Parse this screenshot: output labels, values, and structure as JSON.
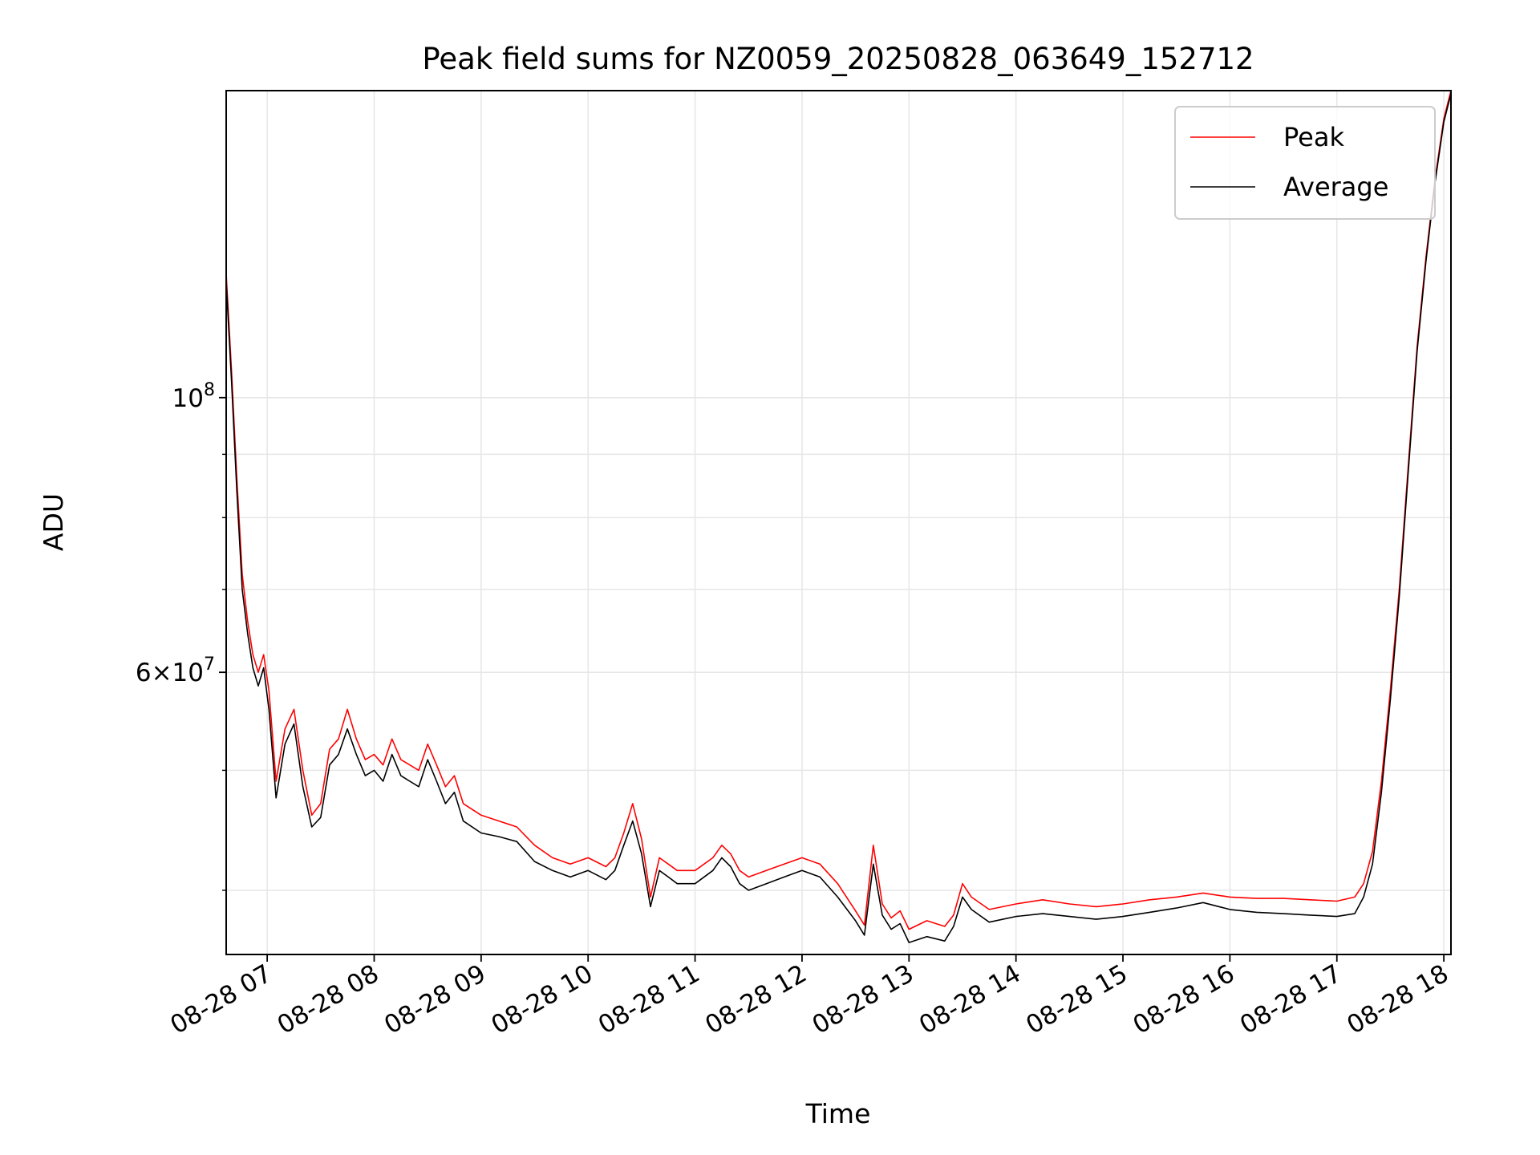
{
  "chart_data": {
    "type": "line",
    "title": "Peak field sums for NZ0059_20250828_063649_152712",
    "xlabel": "Time",
    "ylabel": "ADU",
    "y_scale": "log",
    "ylim": [
      35500000,
      177000000
    ],
    "xlim": [
      "2025-08-28 06:37",
      "2025-08-28 18:04"
    ],
    "x_ticks": [
      {
        "time": "2025-08-28 07:00",
        "label": "08-28 07"
      },
      {
        "time": "2025-08-28 08:00",
        "label": "08-28 08"
      },
      {
        "time": "2025-08-28 09:00",
        "label": "08-28 09"
      },
      {
        "time": "2025-08-28 10:00",
        "label": "08-28 10"
      },
      {
        "time": "2025-08-28 11:00",
        "label": "08-28 11"
      },
      {
        "time": "2025-08-28 12:00",
        "label": "08-28 12"
      },
      {
        "time": "2025-08-28 13:00",
        "label": "08-28 13"
      },
      {
        "time": "2025-08-28 14:00",
        "label": "08-28 14"
      },
      {
        "time": "2025-08-28 15:00",
        "label": "08-28 15"
      },
      {
        "time": "2025-08-28 16:00",
        "label": "08-28 16"
      },
      {
        "time": "2025-08-28 17:00",
        "label": "08-28 17"
      },
      {
        "time": "2025-08-28 18:00",
        "label": "08-28 18"
      }
    ],
    "y_major_ticks": [
      {
        "value": 100000000,
        "mantissa": "",
        "base": "10",
        "exp": "8"
      },
      {
        "value": 60000000,
        "mantissa": "6",
        "base": "10",
        "exp": "7"
      }
    ],
    "y_minor_ticks": [
      40000000,
      50000000,
      70000000,
      80000000,
      90000000
    ],
    "grid": true,
    "legend_position": "top-right",
    "series": [
      {
        "name": "Peak",
        "color": "#ff0000",
        "points": [
          [
            "2025-08-28 06:37",
            126000000
          ],
          [
            "2025-08-28 06:40",
            105000000
          ],
          [
            "2025-08-28 06:43",
            86000000
          ],
          [
            "2025-08-28 06:46",
            72000000
          ],
          [
            "2025-08-28 06:49",
            66000000
          ],
          [
            "2025-08-28 06:52",
            62000000
          ],
          [
            "2025-08-28 06:55",
            60000000
          ],
          [
            "2025-08-28 06:58",
            62000000
          ],
          [
            "2025-08-28 07:01",
            58000000
          ],
          [
            "2025-08-28 07:05",
            49000000
          ],
          [
            "2025-08-28 07:10",
            54000000
          ],
          [
            "2025-08-28 07:15",
            56000000
          ],
          [
            "2025-08-28 07:20",
            50000000
          ],
          [
            "2025-08-28 07:25",
            46000000
          ],
          [
            "2025-08-28 07:30",
            47000000
          ],
          [
            "2025-08-28 07:35",
            52000000
          ],
          [
            "2025-08-28 07:40",
            53000000
          ],
          [
            "2025-08-28 07:45",
            56000000
          ],
          [
            "2025-08-28 07:50",
            53000000
          ],
          [
            "2025-08-28 07:55",
            51000000
          ],
          [
            "2025-08-28 08:00",
            51500000
          ],
          [
            "2025-08-28 08:05",
            50500000
          ],
          [
            "2025-08-28 08:10",
            53000000
          ],
          [
            "2025-08-28 08:15",
            51000000
          ],
          [
            "2025-08-28 08:20",
            50500000
          ],
          [
            "2025-08-28 08:25",
            50000000
          ],
          [
            "2025-08-28 08:30",
            52500000
          ],
          [
            "2025-08-28 08:35",
            50500000
          ],
          [
            "2025-08-28 08:40",
            48500000
          ],
          [
            "2025-08-28 08:45",
            49500000
          ],
          [
            "2025-08-28 08:50",
            47000000
          ],
          [
            "2025-08-28 09:00",
            46000000
          ],
          [
            "2025-08-28 09:10",
            45500000
          ],
          [
            "2025-08-28 09:20",
            45000000
          ],
          [
            "2025-08-28 09:30",
            43500000
          ],
          [
            "2025-08-28 09:40",
            42500000
          ],
          [
            "2025-08-28 09:50",
            42000000
          ],
          [
            "2025-08-28 10:00",
            42500000
          ],
          [
            "2025-08-28 10:10",
            41800000
          ],
          [
            "2025-08-28 10:15",
            42500000
          ],
          [
            "2025-08-28 10:20",
            44500000
          ],
          [
            "2025-08-28 10:25",
            47000000
          ],
          [
            "2025-08-28 10:30",
            44000000
          ],
          [
            "2025-08-28 10:35",
            39500000
          ],
          [
            "2025-08-28 10:40",
            42500000
          ],
          [
            "2025-08-28 10:45",
            42000000
          ],
          [
            "2025-08-28 10:50",
            41500000
          ],
          [
            "2025-08-28 11:00",
            41500000
          ],
          [
            "2025-08-28 11:10",
            42500000
          ],
          [
            "2025-08-28 11:15",
            43500000
          ],
          [
            "2025-08-28 11:20",
            42800000
          ],
          [
            "2025-08-28 11:25",
            41500000
          ],
          [
            "2025-08-28 11:30",
            41000000
          ],
          [
            "2025-08-28 11:40",
            41500000
          ],
          [
            "2025-08-28 11:50",
            42000000
          ],
          [
            "2025-08-28 12:00",
            42500000
          ],
          [
            "2025-08-28 12:10",
            42000000
          ],
          [
            "2025-08-28 12:20",
            40500000
          ],
          [
            "2025-08-28 12:30",
            38500000
          ],
          [
            "2025-08-28 12:35",
            37500000
          ],
          [
            "2025-08-28 12:40",
            43500000
          ],
          [
            "2025-08-28 12:45",
            39000000
          ],
          [
            "2025-08-28 12:50",
            38000000
          ],
          [
            "2025-08-28 12:55",
            38500000
          ],
          [
            "2025-08-28 13:00",
            37200000
          ],
          [
            "2025-08-28 13:10",
            37800000
          ],
          [
            "2025-08-28 13:20",
            37400000
          ],
          [
            "2025-08-28 13:25",
            38200000
          ],
          [
            "2025-08-28 13:30",
            40500000
          ],
          [
            "2025-08-28 13:35",
            39500000
          ],
          [
            "2025-08-28 13:45",
            38600000
          ],
          [
            "2025-08-28 14:00",
            39000000
          ],
          [
            "2025-08-28 14:15",
            39300000
          ],
          [
            "2025-08-28 14:30",
            39000000
          ],
          [
            "2025-08-28 14:45",
            38800000
          ],
          [
            "2025-08-28 15:00",
            39000000
          ],
          [
            "2025-08-28 15:15",
            39300000
          ],
          [
            "2025-08-28 15:30",
            39500000
          ],
          [
            "2025-08-28 15:45",
            39800000
          ],
          [
            "2025-08-28 16:00",
            39500000
          ],
          [
            "2025-08-28 16:15",
            39400000
          ],
          [
            "2025-08-28 16:30",
            39400000
          ],
          [
            "2025-08-28 16:45",
            39300000
          ],
          [
            "2025-08-28 17:00",
            39200000
          ],
          [
            "2025-08-28 17:10",
            39500000
          ],
          [
            "2025-08-28 17:15",
            40500000
          ],
          [
            "2025-08-28 17:20",
            43000000
          ],
          [
            "2025-08-28 17:25",
            49000000
          ],
          [
            "2025-08-28 17:30",
            58000000
          ],
          [
            "2025-08-28 17:35",
            70000000
          ],
          [
            "2025-08-28 17:40",
            88000000
          ],
          [
            "2025-08-28 17:45",
            110000000
          ],
          [
            "2025-08-28 17:50",
            130000000
          ],
          [
            "2025-08-28 17:55",
            150000000
          ],
          [
            "2025-08-28 18:00",
            168000000
          ],
          [
            "2025-08-28 18:04",
            177000000
          ]
        ]
      },
      {
        "name": "Average",
        "color": "#000000",
        "points": [
          [
            "2025-08-28 06:37",
            124000000
          ],
          [
            "2025-08-28 06:40",
            103000000
          ],
          [
            "2025-08-28 06:43",
            84000000
          ],
          [
            "2025-08-28 06:46",
            70000000
          ],
          [
            "2025-08-28 06:49",
            64500000
          ],
          [
            "2025-08-28 06:52",
            60500000
          ],
          [
            "2025-08-28 06:55",
            58500000
          ],
          [
            "2025-08-28 06:58",
            60500000
          ],
          [
            "2025-08-28 07:01",
            56000000
          ],
          [
            "2025-08-28 07:05",
            47500000
          ],
          [
            "2025-08-28 07:10",
            52500000
          ],
          [
            "2025-08-28 07:15",
            54500000
          ],
          [
            "2025-08-28 07:20",
            48500000
          ],
          [
            "2025-08-28 07:25",
            45000000
          ],
          [
            "2025-08-28 07:30",
            45800000
          ],
          [
            "2025-08-28 07:35",
            50500000
          ],
          [
            "2025-08-28 07:40",
            51500000
          ],
          [
            "2025-08-28 07:45",
            54000000
          ],
          [
            "2025-08-28 07:50",
            51500000
          ],
          [
            "2025-08-28 07:55",
            49500000
          ],
          [
            "2025-08-28 08:00",
            50000000
          ],
          [
            "2025-08-28 08:05",
            49000000
          ],
          [
            "2025-08-28 08:10",
            51500000
          ],
          [
            "2025-08-28 08:15",
            49500000
          ],
          [
            "2025-08-28 08:20",
            49000000
          ],
          [
            "2025-08-28 08:25",
            48500000
          ],
          [
            "2025-08-28 08:30",
            51000000
          ],
          [
            "2025-08-28 08:35",
            49000000
          ],
          [
            "2025-08-28 08:40",
            47000000
          ],
          [
            "2025-08-28 08:45",
            48000000
          ],
          [
            "2025-08-28 08:50",
            45500000
          ],
          [
            "2025-08-28 09:00",
            44500000
          ],
          [
            "2025-08-28 09:10",
            44200000
          ],
          [
            "2025-08-28 09:20",
            43800000
          ],
          [
            "2025-08-28 09:30",
            42200000
          ],
          [
            "2025-08-28 09:40",
            41500000
          ],
          [
            "2025-08-28 09:50",
            41000000
          ],
          [
            "2025-08-28 10:00",
            41500000
          ],
          [
            "2025-08-28 10:10",
            40800000
          ],
          [
            "2025-08-28 10:15",
            41500000
          ],
          [
            "2025-08-28 10:20",
            43500000
          ],
          [
            "2025-08-28 10:25",
            45500000
          ],
          [
            "2025-08-28 10:30",
            42800000
          ],
          [
            "2025-08-28 10:35",
            38800000
          ],
          [
            "2025-08-28 10:40",
            41500000
          ],
          [
            "2025-08-28 10:45",
            41000000
          ],
          [
            "2025-08-28 10:50",
            40500000
          ],
          [
            "2025-08-28 11:00",
            40500000
          ],
          [
            "2025-08-28 11:10",
            41500000
          ],
          [
            "2025-08-28 11:15",
            42500000
          ],
          [
            "2025-08-28 11:20",
            41800000
          ],
          [
            "2025-08-28 11:25",
            40500000
          ],
          [
            "2025-08-28 11:30",
            40000000
          ],
          [
            "2025-08-28 11:40",
            40500000
          ],
          [
            "2025-08-28 11:50",
            41000000
          ],
          [
            "2025-08-28 12:00",
            41500000
          ],
          [
            "2025-08-28 12:10",
            41000000
          ],
          [
            "2025-08-28 12:20",
            39500000
          ],
          [
            "2025-08-28 12:30",
            37800000
          ],
          [
            "2025-08-28 12:35",
            36800000
          ],
          [
            "2025-08-28 12:40",
            42000000
          ],
          [
            "2025-08-28 12:45",
            38200000
          ],
          [
            "2025-08-28 12:50",
            37200000
          ],
          [
            "2025-08-28 12:55",
            37600000
          ],
          [
            "2025-08-28 13:00",
            36300000
          ],
          [
            "2025-08-28 13:10",
            36700000
          ],
          [
            "2025-08-28 13:20",
            36400000
          ],
          [
            "2025-08-28 13:25",
            37400000
          ],
          [
            "2025-08-28 13:30",
            39500000
          ],
          [
            "2025-08-28 13:35",
            38600000
          ],
          [
            "2025-08-28 13:45",
            37700000
          ],
          [
            "2025-08-28 14:00",
            38100000
          ],
          [
            "2025-08-28 14:15",
            38300000
          ],
          [
            "2025-08-28 14:30",
            38100000
          ],
          [
            "2025-08-28 14:45",
            37900000
          ],
          [
            "2025-08-28 15:00",
            38100000
          ],
          [
            "2025-08-28 15:15",
            38400000
          ],
          [
            "2025-08-28 15:30",
            38700000
          ],
          [
            "2025-08-28 15:45",
            39100000
          ],
          [
            "2025-08-28 16:00",
            38600000
          ],
          [
            "2025-08-28 16:15",
            38400000
          ],
          [
            "2025-08-28 16:30",
            38300000
          ],
          [
            "2025-08-28 16:45",
            38200000
          ],
          [
            "2025-08-28 17:00",
            38100000
          ],
          [
            "2025-08-28 17:10",
            38300000
          ],
          [
            "2025-08-28 17:15",
            39500000
          ],
          [
            "2025-08-28 17:20",
            42000000
          ],
          [
            "2025-08-28 17:25",
            48000000
          ],
          [
            "2025-08-28 17:30",
            57000000
          ],
          [
            "2025-08-28 17:35",
            69000000
          ],
          [
            "2025-08-28 17:40",
            87000000
          ],
          [
            "2025-08-28 17:45",
            109000000
          ],
          [
            "2025-08-28 17:50",
            129000000
          ],
          [
            "2025-08-28 17:55",
            149000000
          ],
          [
            "2025-08-28 18:00",
            167000000
          ],
          [
            "2025-08-28 18:04",
            176000000
          ]
        ]
      }
    ]
  }
}
